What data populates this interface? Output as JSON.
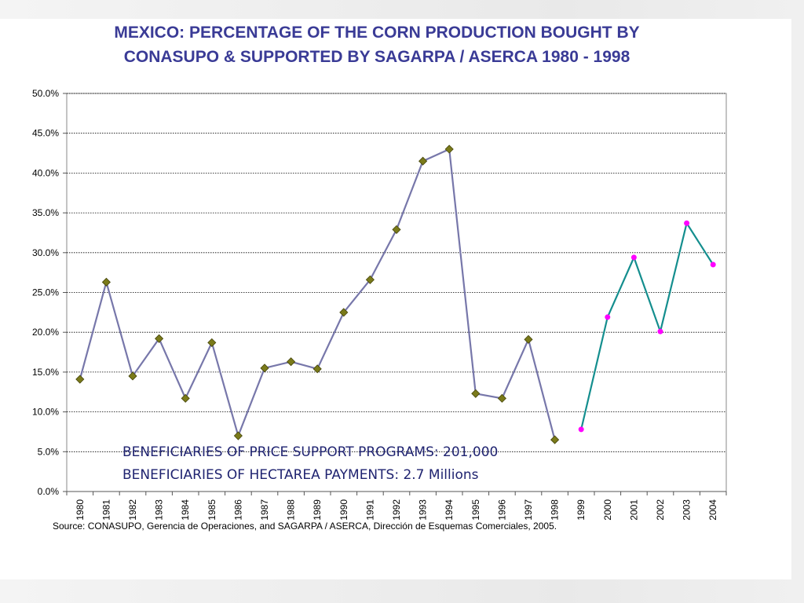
{
  "title_line1": "MEXICO: PERCENTAGE OF THE CORN PRODUCTION BOUGHT BY",
  "title_line2": "CONASUPO & SUPPORTED BY SAGARPA / ASERCA 1980 - 1998",
  "annotation_line1": "BENEFICIARIES OF PRICE SUPPORT PROGRAMS: 201,000",
  "annotation_line2": "BENEFICIARIES OF HECTAREA PAYMENTS:  2.7 Millions",
  "source": "Source: CONASUPO, Gerencia de Operaciones, and SAGARPA / ASERCA,  Dirección de Esquemas Comerciales, 2005.",
  "colors": {
    "title": "#3a3b96",
    "series1_line": "#7777aa",
    "series1_marker": "#7a7a1a",
    "series2_line": "#148e8e",
    "series2_marker": "#ff00ff",
    "grid": "#000000"
  },
  "chart_data": {
    "type": "line",
    "title": "MEXICO: PERCENTAGE OF THE CORN PRODUCTION BOUGHT BY CONASUPO & SUPPORTED BY SAGARPA / ASERCA 1980 - 1998",
    "xlabel": "",
    "ylabel": "",
    "categories": [
      "1980",
      "1981",
      "1982",
      "1983",
      "1984",
      "1985",
      "1986",
      "1987",
      "1988",
      "1989",
      "1990",
      "1991",
      "1992",
      "1993",
      "1994",
      "1995",
      "1996",
      "1997",
      "1998",
      "1999",
      "2000",
      "2001",
      "2002",
      "2003",
      "2004"
    ],
    "ylim": [
      0,
      50
    ],
    "yticks": [
      "0.0%",
      "5.0%",
      "10.0%",
      "15.0%",
      "20.0%",
      "25.0%",
      "30.0%",
      "35.0%",
      "40.0%",
      "45.0%",
      "50.0%"
    ],
    "grid": "horizontal dotted",
    "legend": "none",
    "series": [
      {
        "values": [
          14.1,
          26.3,
          14.5,
          19.2,
          11.7,
          18.7,
          7.0,
          15.5,
          16.3,
          15.4,
          22.5,
          26.6,
          32.9,
          41.5,
          43.0,
          12.3,
          11.7,
          19.1,
          6.5,
          null,
          null,
          null,
          null,
          null,
          null
        ]
      },
      {
        "values": [
          null,
          null,
          null,
          null,
          null,
          null,
          null,
          null,
          null,
          null,
          null,
          null,
          null,
          null,
          null,
          null,
          null,
          null,
          null,
          7.8,
          21.9,
          29.4,
          20.1,
          33.7,
          28.5
        ]
      }
    ]
  }
}
